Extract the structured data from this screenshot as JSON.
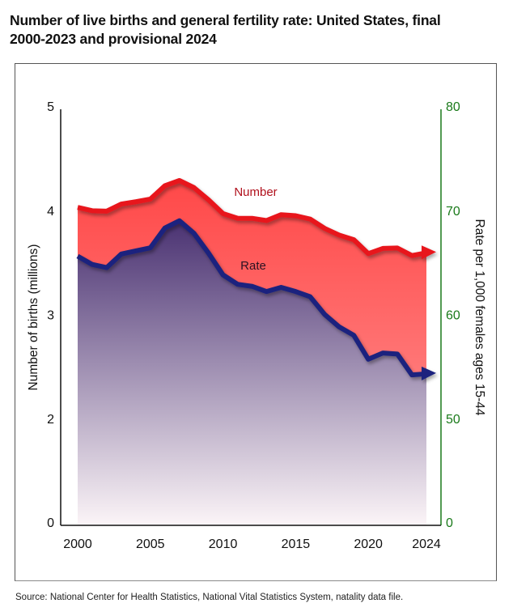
{
  "title_lines": [
    "Number of live births and general fertility rate: United States, final",
    "2000-2023 and provisional 2024"
  ],
  "source": "Source: National Center for Health Statistics, National Vital Statistics System, natality data file.",
  "colors": {
    "number_line": "#e8141e",
    "number_fill_top": "#ff4848",
    "number_fill_bottom": "#ff9c9c",
    "rate_line": "#1a237e",
    "rate_fill_top": "#4a3272",
    "rate_fill_bottom": "#fbf4f7",
    "left_axis": "#111111",
    "right_axis": "#1a7a1a"
  },
  "chart_data": {
    "type": "area",
    "title": "Number of live births and general fertility rate: United States, final 2000-2023 and provisional 2024",
    "x": [
      2000,
      2001,
      2002,
      2003,
      2004,
      2005,
      2006,
      2007,
      2008,
      2009,
      2010,
      2011,
      2012,
      2013,
      2014,
      2015,
      2016,
      2017,
      2018,
      2019,
      2020,
      2021,
      2022,
      2023,
      2024
    ],
    "series": [
      {
        "name": "Number",
        "axis": "left",
        "unit": "millions",
        "values": [
          4.058,
          4.026,
          4.022,
          4.09,
          4.112,
          4.138,
          4.266,
          4.316,
          4.248,
          4.131,
          3.999,
          3.954,
          3.953,
          3.932,
          3.988,
          3.978,
          3.946,
          3.856,
          3.792,
          3.748,
          3.614,
          3.664,
          3.668,
          3.596,
          3.622
        ]
      },
      {
        "name": "Rate",
        "axis": "right",
        "unit": "per 1,000 females ages 15-44",
        "values": [
          65.9,
          65.1,
          64.8,
          66.1,
          66.4,
          66.7,
          68.6,
          69.3,
          68.1,
          66.2,
          64.1,
          63.2,
          63.0,
          62.5,
          62.9,
          62.5,
          62.0,
          60.3,
          59.1,
          58.3,
          56.0,
          56.6,
          56.5,
          54.5,
          54.6
        ]
      }
    ],
    "xlabel": "",
    "ylabel": "Number of births (millions)",
    "y2label": "Rate per 1,000 females ages 15-44",
    "x_ticks": [
      "2000",
      "2005",
      "2010",
      "2015",
      "2020",
      "2024"
    ],
    "y_ticks": [
      "0",
      "2",
      "3",
      "4",
      "5"
    ],
    "y2_ticks": [
      "0",
      "50",
      "60",
      "70",
      "80"
    ],
    "ylim": [
      0,
      5
    ],
    "y2lim": [
      0,
      80
    ],
    "y_axis_break": "between 0 and 2 (left) / 0 and 50 (right)",
    "grid": false,
    "legend": "inline labels near lines",
    "series_labels": [
      "Number",
      "Rate"
    ]
  }
}
